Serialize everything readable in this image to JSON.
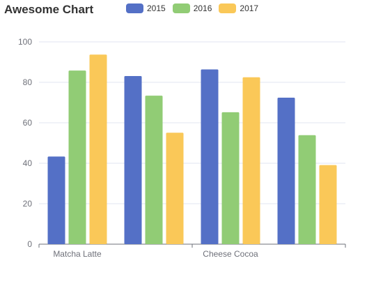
{
  "chart_data": {
    "type": "bar",
    "title": "Awesome Chart",
    "categories": [
      "Matcha Latte",
      "",
      "Cheese Cocoa",
      ""
    ],
    "series": [
      {
        "name": "2015",
        "color": "#5470c6",
        "values": [
          43.3,
          83.1,
          86.4,
          72.4
        ]
      },
      {
        "name": "2016",
        "color": "#91cc75",
        "values": [
          85.8,
          73.4,
          65.2,
          53.9
        ]
      },
      {
        "name": "2017",
        "color": "#fac858",
        "values": [
          93.7,
          55.1,
          82.5,
          39.1
        ]
      }
    ],
    "ylim": [
      0,
      100
    ],
    "yticks": [
      0,
      20,
      40,
      60,
      80,
      100
    ],
    "xlabel": "",
    "ylabel": "",
    "grid": true,
    "legend_position": "top"
  }
}
